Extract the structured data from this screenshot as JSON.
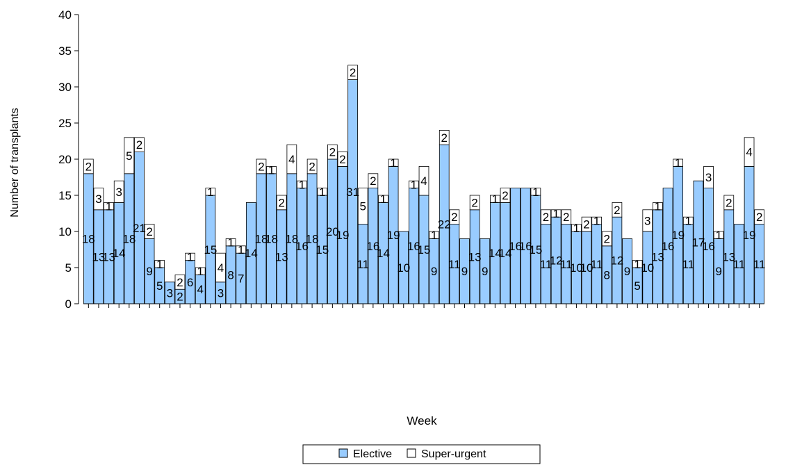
{
  "chart_data": {
    "type": "bar",
    "stacked": true,
    "xlabel": "Week",
    "ylabel": "Number of transplants",
    "ylim": [
      0,
      40
    ],
    "yticks": [
      0,
      5,
      10,
      15,
      20,
      25,
      30,
      35,
      40
    ],
    "grid": false,
    "legend_position": "bottom-center",
    "colors": {
      "elective": "#99ccff",
      "super_urgent": "#ffffff",
      "outline": "#000000"
    },
    "series": [
      {
        "name": "Elective",
        "values": [
          18,
          13,
          13,
          14,
          18,
          21,
          9,
          5,
          3,
          2,
          6,
          4,
          15,
          3,
          8,
          7,
          14,
          18,
          18,
          13,
          18,
          16,
          18,
          15,
          20,
          19,
          31,
          11,
          16,
          14,
          19,
          10,
          16,
          15,
          9,
          22,
          11,
          9,
          13,
          9,
          14,
          14,
          16,
          16,
          15,
          11,
          12,
          11,
          10,
          10,
          11,
          8,
          12,
          9,
          5,
          10,
          13,
          16,
          19,
          11,
          17,
          16,
          9,
          13,
          11,
          19,
          11
        ]
      },
      {
        "name": "Super-urgent",
        "values": [
          2,
          3,
          1,
          3,
          5,
          2,
          2,
          1,
          0,
          2,
          1,
          1,
          1,
          4,
          1,
          1,
          0,
          2,
          1,
          2,
          4,
          1,
          2,
          1,
          2,
          2,
          2,
          5,
          2,
          1,
          1,
          0,
          1,
          4,
          1,
          2,
          2,
          0,
          2,
          0,
          1,
          2,
          0,
          0,
          1,
          2,
          1,
          2,
          1,
          2,
          1,
          2,
          2,
          0,
          1,
          3,
          1,
          0,
          1,
          1,
          0,
          3,
          1,
          2,
          0,
          4,
          2
        ]
      }
    ]
  }
}
